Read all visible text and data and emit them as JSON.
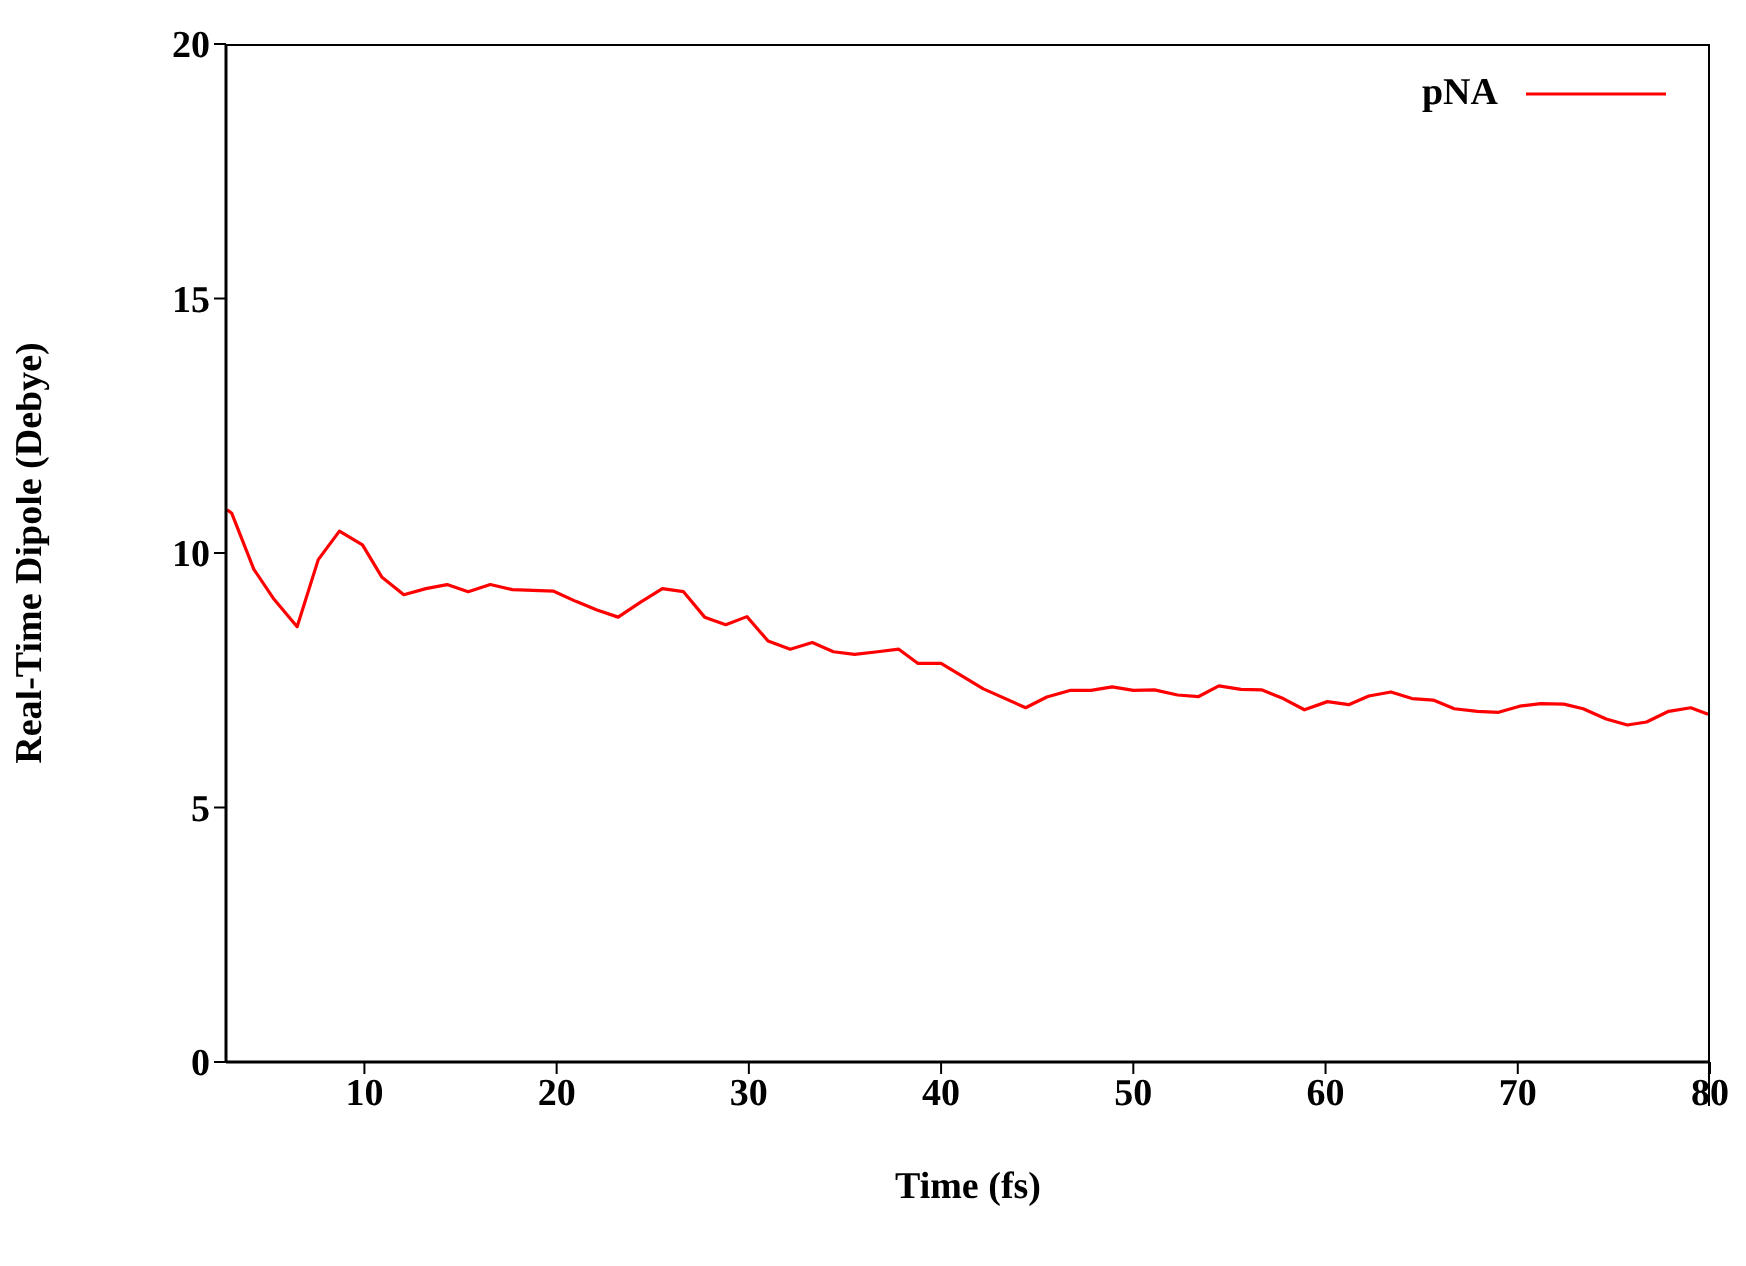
{
  "chart_data": {
    "type": "line",
    "xlabel": "Time (fs)",
    "ylabel": "Real-Time Dipole (Debye)",
    "xlim": [
      2.8,
      80
    ],
    "xticks": [
      10,
      20,
      30,
      40,
      50,
      60,
      70,
      80
    ],
    "ylim": [
      0,
      20
    ],
    "yticks": [
      0,
      5,
      10,
      15,
      20
    ],
    "legend": "top right",
    "marker": "none",
    "line_style": "solid",
    "series": [
      {
        "name": "pNA",
        "color": "#ff0000",
        "x": [
          2.86,
          3.1,
          4.25,
          5.3,
          6.5,
          7.6,
          8.7,
          9.9,
          10.9,
          12.05,
          13.2,
          14.3,
          15.4,
          16.55,
          17.7,
          19.85,
          21.0,
          22.1,
          23.2,
          24.35,
          25.5,
          26.6,
          27.7,
          28.8,
          29.9,
          31.0,
          32.15,
          33.3,
          34.4,
          35.5,
          36.7,
          37.8,
          38.8,
          40.0,
          42.2,
          44.4,
          45.5,
          46.7,
          47.8,
          48.9,
          50.0,
          51.1,
          52.3,
          53.4,
          54.45,
          55.6,
          56.7,
          57.8,
          58.9,
          60.1,
          61.2,
          62.25,
          63.4,
          64.5,
          65.6,
          66.7,
          67.9,
          69.0,
          70.1,
          71.2,
          72.4,
          73.4,
          74.6,
          75.7,
          76.7,
          77.85,
          79.0,
          79.9
        ],
        "values": [
          10.85,
          10.78,
          9.68,
          9.09,
          8.55,
          9.87,
          10.43,
          10.16,
          9.53,
          9.18,
          9.3,
          9.38,
          9.24,
          9.38,
          9.28,
          9.25,
          9.05,
          8.88,
          8.74,
          9.03,
          9.3,
          9.24,
          8.74,
          8.59,
          8.75,
          8.27,
          8.11,
          8.24,
          8.06,
          8.01,
          8.06,
          8.11,
          7.83,
          7.83,
          7.33,
          6.96,
          7.17,
          7.3,
          7.3,
          7.37,
          7.3,
          7.31,
          7.21,
          7.18,
          7.39,
          7.32,
          7.31,
          7.14,
          6.92,
          7.08,
          7.02,
          7.19,
          7.27,
          7.14,
          7.11,
          6.94,
          6.89,
          6.87,
          6.99,
          7.04,
          7.03,
          6.94,
          6.74,
          6.62,
          6.68,
          6.89,
          6.96,
          6.83
        ]
      }
    ]
  }
}
